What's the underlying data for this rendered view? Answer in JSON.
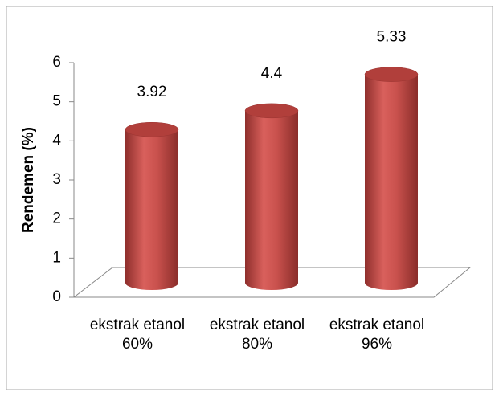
{
  "chart_data": {
    "type": "bar3d",
    "y_label": "Rendemen (%)",
    "categories": [
      "ekstrak etanol 60%",
      "ekstrak etanol 80%",
      "ekstrak etanol 96%"
    ],
    "values": [
      3.92,
      4.4,
      5.33
    ],
    "color": "#c0504d",
    "ylim": [
      0,
      6
    ],
    "yticks": [
      0,
      1,
      2,
      3,
      4,
      5,
      6
    ]
  }
}
